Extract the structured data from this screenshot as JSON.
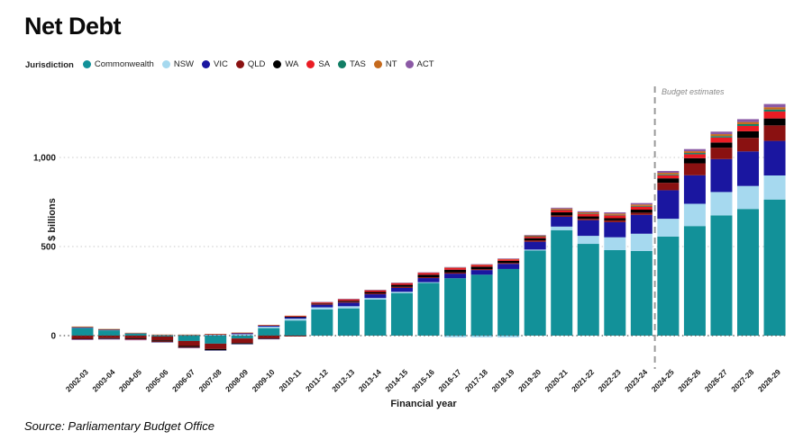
{
  "title": "Net Debt",
  "legend": {
    "label": "Jurisdiction"
  },
  "axes": {
    "y_label": "$ billions",
    "x_label": "Financial year"
  },
  "annotation": {
    "budget_estimates": "Budget estimates"
  },
  "source": "Source: Parliamentary Budget Office",
  "colors": {
    "commonwealth": "#129199",
    "nsw": "#a6d9ef",
    "vic": "#1a16a0",
    "qld": "#8a1111",
    "wa": "#000000",
    "sa": "#ea1c24",
    "tas": "#117d64",
    "nt": "#c56a1d",
    "act": "#8b59a5",
    "gridline": "#c9c9c9",
    "zero_line": "#555555",
    "budget_line": "#999999"
  },
  "chart_data": {
    "type": "bar",
    "stacked": true,
    "title": "Net Debt",
    "xlabel": "Financial year",
    "ylabel": "$ billions",
    "ylim": [
      -100,
      1350
    ],
    "grid": "dotted-horizontal",
    "legend_position": "top",
    "units": "$ billions",
    "y_ticks": [
      {
        "value": 0,
        "label": "0"
      },
      {
        "value": 500,
        "label": "500"
      },
      {
        "value": 1000,
        "label": "1,000"
      }
    ],
    "budget_line_after_index": 21,
    "budget_line_label": "Budget estimates",
    "categories": [
      "2002-03",
      "2003-04",
      "2004-05",
      "2005-06",
      "2006-07",
      "2007-08",
      "2008-09",
      "2009-10",
      "2010-11",
      "2011-12",
      "2012-13",
      "2013-14",
      "2014-15",
      "2015-16",
      "2016-17",
      "2017-18",
      "2018-19",
      "2019-20",
      "2020-21",
      "2021-22",
      "2022-23",
      "2023-24",
      "2024-25",
      "2025-26",
      "2026-27",
      "2027-28",
      "2028-29"
    ],
    "series": [
      {
        "name": "Commonwealth",
        "color": "#129199",
        "values": [
          42,
          30,
          12,
          -5,
          -30,
          -45,
          -16,
          42,
          85,
          147,
          153,
          202,
          239,
          296,
          322,
          342,
          374,
          478,
          592,
          515,
          480,
          475,
          556,
          615,
          675,
          711,
          764
        ]
      },
      {
        "name": "NSW",
        "color": "#a6d9ef",
        "values": [
          3,
          2,
          2,
          3,
          3,
          4,
          8,
          8,
          10,
          12,
          12,
          9,
          7,
          4,
          -10,
          -10,
          -10,
          5,
          20,
          45,
          72,
          97,
          100,
          125,
          131,
          129,
          135
        ]
      },
      {
        "name": "VIC",
        "color": "#1a16a0",
        "values": [
          1,
          1,
          1,
          2,
          2,
          3,
          6,
          6,
          9,
          15,
          20,
          21,
          22,
          23,
          26,
          26,
          29,
          44,
          55,
          88,
          85,
          106,
          160,
          160,
          185,
          194,
          194
        ]
      },
      {
        "name": "QLD",
        "color": "#8a1111",
        "values": [
          -18,
          -14,
          -16,
          -22,
          -28,
          -30,
          -26,
          -15,
          -5,
          2,
          5,
          5,
          6,
          5,
          6,
          5,
          5,
          8,
          8,
          8,
          10,
          12,
          42,
          67,
          64,
          76,
          87
        ]
      },
      {
        "name": "WA",
        "color": "#000000",
        "values": [
          -3,
          -4,
          -5,
          -6,
          -7,
          -6,
          -4,
          -3,
          2,
          4,
          6,
          8,
          11,
          14,
          16,
          14,
          12,
          12,
          17,
          13,
          12,
          17,
          25,
          29,
          29,
          37,
          39
        ]
      },
      {
        "name": "SA",
        "color": "#ea1c24",
        "values": [
          3,
          2,
          -2,
          -2,
          -2,
          2,
          2,
          3,
          4,
          6,
          7,
          8,
          8,
          9,
          10,
          9,
          8,
          10,
          14,
          15,
          16,
          17,
          17,
          22,
          28,
          30,
          39
        ]
      },
      {
        "name": "TAS",
        "color": "#117d64",
        "values": [
          1,
          1,
          0,
          -1,
          -1,
          -1,
          -1,
          0,
          0,
          0,
          0,
          0,
          0,
          0,
          0,
          0,
          0,
          1,
          2,
          2,
          3,
          4,
          5,
          7,
          8,
          10,
          11
        ]
      },
      {
        "name": "NT",
        "color": "#c56a1d",
        "values": [
          1,
          1,
          1,
          1,
          1,
          1,
          1,
          1,
          2,
          2,
          3,
          3,
          3,
          3,
          3,
          3,
          3,
          4,
          5,
          6,
          7,
          8,
          9,
          10,
          11,
          12,
          13
        ]
      },
      {
        "name": "ACT",
        "color": "#8b59a5",
        "values": [
          -4,
          -4,
          -3,
          -3,
          -3,
          -2,
          -2,
          -1,
          0,
          1,
          1,
          1,
          1,
          1,
          2,
          2,
          2,
          3,
          5,
          6,
          7,
          8,
          10,
          12,
          14,
          16,
          18
        ]
      }
    ]
  }
}
